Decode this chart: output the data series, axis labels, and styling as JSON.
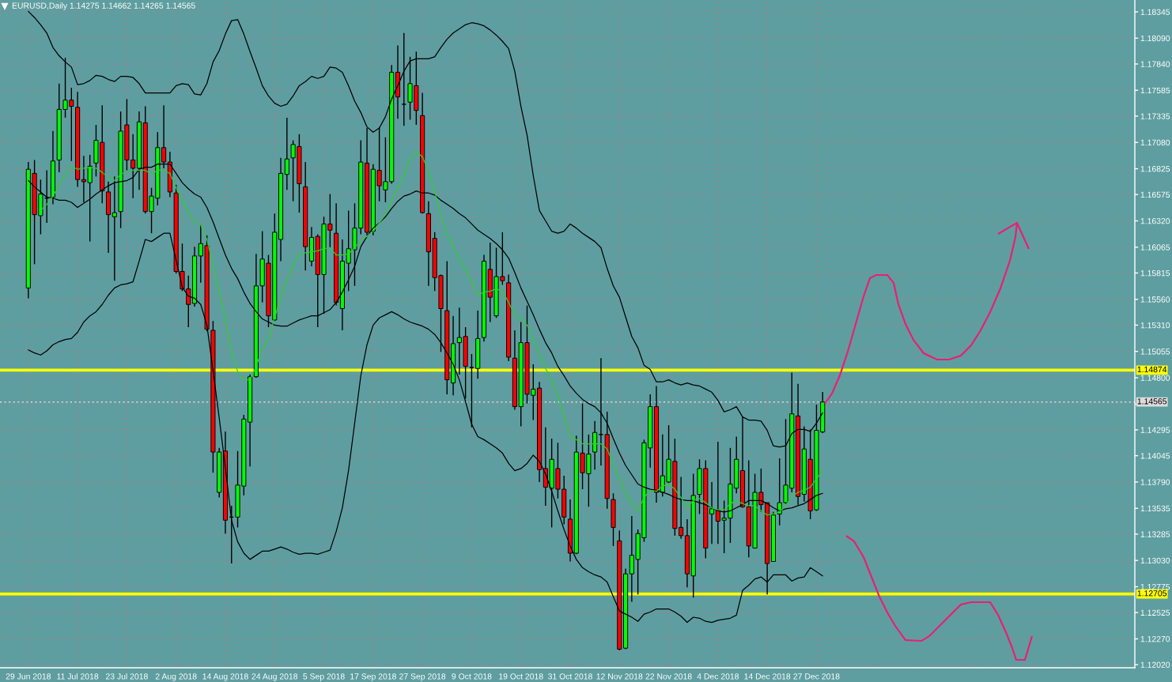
{
  "chart_data": {
    "type": "candlestick",
    "title": "EURUSD,Daily 1.14275 1.14662 1.14265 1.14565",
    "categories": [
      "29 Jun 2018",
      null,
      null,
      null,
      null,
      null,
      null,
      null,
      "11 Jul 2018",
      null,
      null,
      null,
      null,
      null,
      null,
      null,
      "23 Jul 2018",
      null,
      null,
      null,
      null,
      null,
      null,
      null,
      "2 Aug 2018",
      null,
      null,
      null,
      null,
      null,
      null,
      null,
      "14 Aug 2018",
      null,
      null,
      null,
      null,
      null,
      null,
      null,
      "24 Aug 2018",
      null,
      null,
      null,
      null,
      null,
      null,
      null,
      "5 Sep 2018",
      null,
      null,
      null,
      null,
      null,
      null,
      null,
      "17 Sep 2018",
      null,
      null,
      null,
      null,
      null,
      null,
      null,
      "27 Sep 2018",
      null,
      null,
      null,
      null,
      null,
      null,
      null,
      "9 Oct 2018",
      null,
      null,
      null,
      null,
      null,
      null,
      null,
      "19 Oct 2018",
      null,
      null,
      null,
      null,
      null,
      null,
      null,
      "31 Oct 2018",
      null,
      null,
      null,
      null,
      null,
      null,
      null,
      "12 Nov 2018",
      null,
      null,
      null,
      null,
      null,
      null,
      null,
      "22 Nov 2018",
      null,
      null,
      null,
      null,
      null,
      null,
      null,
      "4 Dec 2018",
      null,
      null,
      null,
      null,
      null,
      null,
      null,
      "14 Dec 2018",
      null,
      null,
      null,
      null,
      null,
      null,
      null,
      "27 Dec 2018",
      null
    ],
    "ohlc": [
      [
        1.1567,
        1.1689,
        1.1557,
        1.1682
      ],
      [
        1.1678,
        1.1691,
        1.159,
        1.1638
      ],
      [
        1.1637,
        1.1672,
        1.1619,
        1.1658
      ],
      [
        1.1654,
        1.1681,
        1.163,
        1.1654
      ],
      [
        1.1655,
        1.1719,
        1.1648,
        1.169
      ],
      [
        1.1691,
        1.1765,
        1.1679,
        1.174
      ],
      [
        1.174,
        1.179,
        1.1732,
        1.1749
      ],
      [
        1.1749,
        1.1761,
        1.169,
        1.1743
      ],
      [
        1.1742,
        1.1757,
        1.1665,
        1.1672
      ],
      [
        1.1672,
        1.1695,
        1.165,
        1.167
      ],
      [
        1.1669,
        1.1696,
        1.1612,
        1.1685
      ],
      [
        1.1688,
        1.1725,
        1.1675,
        1.171
      ],
      [
        1.1708,
        1.1744,
        1.1649,
        1.1661
      ],
      [
        1.166,
        1.167,
        1.1601,
        1.1638
      ],
      [
        1.1636,
        1.1675,
        1.1574,
        1.164
      ],
      [
        1.1641,
        1.1738,
        1.1625,
        1.1719
      ],
      [
        1.1725,
        1.175,
        1.1681,
        1.1691
      ],
      [
        1.1691,
        1.1716,
        1.1654,
        1.1683
      ],
      [
        1.1683,
        1.1738,
        1.1662,
        1.1728
      ],
      [
        1.1727,
        1.1743,
        1.1639,
        1.1641
      ],
      [
        1.1641,
        1.1664,
        1.162,
        1.1656
      ],
      [
        1.1654,
        1.1718,
        1.1647,
        1.1703
      ],
      [
        1.1703,
        1.1744,
        1.1683,
        1.1689
      ],
      [
        1.1689,
        1.1699,
        1.1655,
        1.166
      ],
      [
        1.1659,
        1.1667,
        1.1581,
        1.1583
      ],
      [
        1.1583,
        1.161,
        1.1564,
        1.1566
      ],
      [
        1.1566,
        1.1579,
        1.1529,
        1.1551
      ],
      [
        1.1552,
        1.1607,
        1.1549,
        1.1598
      ],
      [
        1.1598,
        1.1628,
        1.1572,
        1.161
      ],
      [
        1.1608,
        1.1618,
        1.1525,
        1.1527
      ],
      [
        1.1526,
        1.1535,
        1.1388,
        1.1408
      ],
      [
        1.1369,
        1.1412,
        1.1364,
        1.1408
      ],
      [
        1.1409,
        1.1428,
        1.1329,
        1.1342
      ],
      [
        1.1345,
        1.1356,
        1.13,
        1.1345
      ],
      [
        1.1345,
        1.1409,
        1.1335,
        1.1376
      ],
      [
        1.1375,
        1.1444,
        1.1366,
        1.144
      ],
      [
        1.1437,
        1.1483,
        1.1394,
        1.1481
      ],
      [
        1.1481,
        1.16,
        1.148,
        1.1569
      ],
      [
        1.1569,
        1.1622,
        1.1553,
        1.1595
      ],
      [
        1.1591,
        1.1599,
        1.1529,
        1.154
      ],
      [
        1.1536,
        1.1639,
        1.1535,
        1.1621
      ],
      [
        1.1614,
        1.1693,
        1.1593,
        1.1678
      ],
      [
        1.1677,
        1.1732,
        1.1662,
        1.1692
      ],
      [
        1.1693,
        1.171,
        1.1651,
        1.1706
      ],
      [
        1.1704,
        1.1716,
        1.164,
        1.1668
      ],
      [
        1.1665,
        1.1689,
        1.1584,
        1.1607
      ],
      [
        1.1593,
        1.1626,
        1.1588,
        1.1616
      ],
      [
        1.1617,
        1.1619,
        1.1529,
        1.158
      ],
      [
        1.158,
        1.1636,
        1.1542,
        1.1629
      ],
      [
        1.1629,
        1.1658,
        1.1606,
        1.1623
      ],
      [
        1.162,
        1.1649,
        1.155,
        1.1553
      ],
      [
        1.1547,
        1.1614,
        1.1526,
        1.1593
      ],
      [
        1.1591,
        1.1642,
        1.1564,
        1.1605
      ],
      [
        1.1604,
        1.1649,
        1.1569,
        1.1625
      ],
      [
        1.1625,
        1.171,
        1.1619,
        1.1689
      ],
      [
        1.1688,
        1.1722,
        1.1618,
        1.1621
      ],
      [
        1.1622,
        1.1687,
        1.1618,
        1.1682
      ],
      [
        1.1681,
        1.1723,
        1.1651,
        1.1666
      ],
      [
        1.1662,
        1.1713,
        1.165,
        1.167
      ],
      [
        1.167,
        1.1783,
        1.1668,
        1.1776
      ],
      [
        1.1776,
        1.1802,
        1.1731,
        1.1752
      ],
      [
        1.1745,
        1.1814,
        1.1724,
        1.1745
      ],
      [
        1.1747,
        1.1791,
        1.173,
        1.1765
      ],
      [
        1.1763,
        1.1796,
        1.1725,
        1.1739
      ],
      [
        1.1734,
        1.1756,
        1.1639,
        1.164
      ],
      [
        1.1639,
        1.1651,
        1.1569,
        1.1602
      ],
      [
        1.1615,
        1.1621,
        1.1564,
        1.1577
      ],
      [
        1.1579,
        1.158,
        1.1505,
        1.1547
      ],
      [
        1.1545,
        1.1593,
        1.1464,
        1.1478
      ],
      [
        1.1475,
        1.154,
        1.1463,
        1.1513
      ],
      [
        1.1514,
        1.1548,
        1.1483,
        1.1519
      ],
      [
        1.152,
        1.1529,
        1.146,
        1.1491
      ],
      [
        1.149,
        1.1503,
        1.1432,
        1.149
      ],
      [
        1.1489,
        1.1545,
        1.1479,
        1.1518
      ],
      [
        1.1519,
        1.1599,
        1.1515,
        1.1593
      ],
      [
        1.1585,
        1.1611,
        1.1534,
        1.1558
      ],
      [
        1.154,
        1.1606,
        1.1538,
        1.1578
      ],
      [
        1.1578,
        1.1621,
        1.157,
        1.1574
      ],
      [
        1.1572,
        1.158,
        1.1496,
        1.15
      ],
      [
        1.1499,
        1.1526,
        1.1449,
        1.1452
      ],
      [
        1.1452,
        1.1534,
        1.1433,
        1.1514
      ],
      [
        1.1514,
        1.155,
        1.1455,
        1.1464
      ],
      [
        1.1463,
        1.1493,
        1.1439,
        1.1469
      ],
      [
        1.147,
        1.1476,
        1.1379,
        1.1391
      ],
      [
        1.1392,
        1.1432,
        1.1356,
        1.1374
      ],
      [
        1.1373,
        1.1421,
        1.1335,
        1.1401
      ],
      [
        1.1392,
        1.1417,
        1.1363,
        1.1372
      ],
      [
        1.1372,
        1.1385,
        1.1338,
        1.1345
      ],
      [
        1.1343,
        1.1362,
        1.1302,
        1.131
      ],
      [
        1.131,
        1.1424,
        1.1309,
        1.1408
      ],
      [
        1.1407,
        1.1455,
        1.1372,
        1.1388
      ],
      [
        1.1387,
        1.1425,
        1.1355,
        1.1406
      ],
      [
        1.1408,
        1.1438,
        1.1391,
        1.1427
      ],
      [
        1.1425,
        1.1499,
        1.1395,
        1.1425
      ],
      [
        1.1425,
        1.1447,
        1.1353,
        1.1363
      ],
      [
        1.1362,
        1.1368,
        1.1317,
        1.1335
      ],
      [
        1.1322,
        1.1332,
        1.1216,
        1.1217
      ],
      [
        1.1218,
        1.1295,
        1.1217,
        1.129
      ],
      [
        1.129,
        1.1346,
        1.1263,
        1.1308
      ],
      [
        1.1304,
        1.1333,
        1.127,
        1.1329
      ],
      [
        1.1325,
        1.142,
        1.1321,
        1.1417
      ],
      [
        1.1412,
        1.1464,
        1.1393,
        1.1452
      ],
      [
        1.1452,
        1.1472,
        1.1359,
        1.1369
      ],
      [
        1.1369,
        1.1425,
        1.1365,
        1.1385
      ],
      [
        1.1379,
        1.1434,
        1.1378,
        1.1401
      ],
      [
        1.1399,
        1.1421,
        1.1327,
        1.1334
      ],
      [
        1.1335,
        1.1384,
        1.1324,
        1.1327
      ],
      [
        1.1327,
        1.1343,
        1.1277,
        1.129
      ],
      [
        1.1288,
        1.1387,
        1.1267,
        1.1366
      ],
      [
        1.1367,
        1.1401,
        1.1348,
        1.1392
      ],
      [
        1.1392,
        1.14,
        1.1305,
        1.1315
      ],
      [
        1.1348,
        1.1379,
        1.1319,
        1.1353
      ],
      [
        1.1352,
        1.1418,
        1.1319,
        1.1341
      ],
      [
        1.1342,
        1.1361,
        1.131,
        1.1344
      ],
      [
        1.1344,
        1.1412,
        1.132,
        1.1377
      ],
      [
        1.1373,
        1.1423,
        1.1368,
        1.1401
      ],
      [
        1.139,
        1.1442,
        1.1354,
        1.1355
      ],
      [
        1.1355,
        1.14,
        1.1306,
        1.1317
      ],
      [
        1.1315,
        1.1387,
        1.1315,
        1.1369
      ],
      [
        1.1369,
        1.1392,
        1.135,
        1.1357
      ],
      [
        1.1359,
        1.1359,
        1.127,
        1.13
      ],
      [
        1.1302,
        1.135,
        1.1302,
        1.1347
      ],
      [
        1.1348,
        1.1402,
        1.1337,
        1.1359
      ],
      [
        1.1359,
        1.144,
        1.1358,
        1.1376
      ],
      [
        1.1373,
        1.1485,
        1.1369,
        1.1445
      ],
      [
        1.1443,
        1.1474,
        1.1357,
        1.1365
      ],
      [
        1.1367,
        1.1433,
        1.136,
        1.1411
      ],
      [
        1.1401,
        1.143,
        1.1343,
        1.1351
      ],
      [
        1.1352,
        1.1454,
        1.1351,
        1.1429
      ],
      [
        1.14275,
        1.14662,
        1.14265,
        1.14565
      ]
    ],
    "colors": [
      "#00ff00",
      "#ff0000",
      "#00ff00",
      "#000000",
      "#00ff00",
      "#00ff00",
      "#00ff00",
      "#ff0000",
      "#ff0000",
      "#ff0000",
      "#00ff00",
      "#00ff00",
      "#ff0000",
      "#ff0000",
      "#00ff00",
      "#00ff00",
      "#ff0000",
      "#ff0000",
      "#00ff00",
      "#ff0000",
      "#00ff00",
      "#00ff00",
      "#ff0000",
      "#ff0000",
      "#ff0000",
      "#ff0000",
      "#ff0000",
      "#00ff00",
      "#00ff00",
      "#ff0000",
      "#ff0000",
      "#00ff00",
      "#ff0000",
      "#000000",
      "#00ff00",
      "#00ff00",
      "#00ff00",
      "#00ff00",
      "#00ff00",
      "#ff0000",
      "#00ff00",
      "#00ff00",
      "#00ff00",
      "#00ff00",
      "#ff0000",
      "#ff0000",
      "#00ff00",
      "#ff0000",
      "#00ff00",
      "#ff0000",
      "#ff0000",
      "#00ff00",
      "#00ff00",
      "#00ff00",
      "#00ff00",
      "#ff0000",
      "#00ff00",
      "#ff0000",
      "#00ff00",
      "#00ff00",
      "#ff0000",
      "#000000",
      "#00ff00",
      "#ff0000",
      "#ff0000",
      "#ff0000",
      "#ff0000",
      "#ff0000",
      "#ff0000",
      "#00ff00",
      "#00ff00",
      "#ff0000",
      "#000000",
      "#00ff00",
      "#00ff00",
      "#ff0000",
      "#00ff00",
      "#ff0000",
      "#ff0000",
      "#ff0000",
      "#00ff00",
      "#ff0000",
      "#00ff00",
      "#ff0000",
      "#ff0000",
      "#00ff00",
      "#ff0000",
      "#ff0000",
      "#ff0000",
      "#00ff00",
      "#ff0000",
      "#00ff00",
      "#00ff00",
      "#000000",
      "#ff0000",
      "#ff0000",
      "#ff0000",
      "#00ff00",
      "#00ff00",
      "#00ff00",
      "#00ff00",
      "#00ff00",
      "#ff0000",
      "#00ff00",
      "#00ff00",
      "#ff0000",
      "#ff0000",
      "#ff0000",
      "#00ff00",
      "#00ff00",
      "#ff0000",
      "#00ff00",
      "#ff0000",
      "#00ff00",
      "#00ff00",
      "#00ff00",
      "#ff0000",
      "#ff0000",
      "#00ff00",
      "#ff0000",
      "#ff0000",
      "#00ff00",
      "#00ff00",
      "#00ff00",
      "#00ff00",
      "#ff0000",
      "#00ff00",
      "#ff0000",
      "#00ff00",
      "#00ff00"
    ],
    "series": [
      {
        "type": "line",
        "color": "#000000",
        "values": [
          1.1835,
          1.1829,
          1.1822,
          1.1814,
          1.18,
          1.1792,
          1.1786,
          1.1781,
          1.1764,
          1.1765,
          1.1768,
          1.1773,
          1.1772,
          1.1769,
          1.1767,
          1.1772,
          1.1772,
          1.1771,
          1.1765,
          1.1756,
          1.1756,
          1.1756,
          1.1756,
          1.1756,
          1.1763,
          1.1765,
          1.1764,
          1.1755,
          1.1754,
          1.1765,
          1.1786,
          1.1797,
          1.1813,
          1.1826,
          1.1827,
          1.1813,
          1.1796,
          1.178,
          1.1763,
          1.1753,
          1.1746,
          1.1743,
          1.1745,
          1.1753,
          1.1763,
          1.1767,
          1.1772,
          1.177,
          1.1772,
          1.1781,
          1.178,
          1.1776,
          1.1763,
          1.1748,
          1.1737,
          1.1723,
          1.1718,
          1.1722,
          1.1733,
          1.175,
          1.1763,
          1.1777,
          1.1787,
          1.1789,
          1.1789,
          1.1789,
          1.1791,
          1.18,
          1.1808,
          1.1814,
          1.1818,
          1.1822,
          1.1824,
          1.1823,
          1.1821,
          1.1817,
          1.1812,
          1.1806,
          1.1799,
          1.1777,
          1.1743,
          1.1715,
          1.1676,
          1.1642,
          1.1632,
          1.1622,
          1.162,
          1.1622,
          1.1629,
          1.1625,
          1.162,
          1.1616,
          1.1612,
          1.1606,
          1.1586,
          1.1569,
          1.1558,
          1.1539,
          1.152,
          1.1509,
          1.1492,
          1.1488,
          1.1476,
          1.1476,
          1.1478,
          1.1475,
          1.1473,
          1.1475,
          1.1473,
          1.1472,
          1.1469,
          1.1466,
          1.1458,
          1.1447,
          1.1449,
          1.1452,
          1.1442,
          1.1439,
          1.1439,
          1.1438,
          1.1429,
          1.1414,
          1.1413,
          1.1414,
          1.1426,
          1.143,
          1.143,
          1.1428,
          1.1436,
          1.1446
        ]
      },
      {
        "type": "line",
        "color": "#000000",
        "values": [
          1.1671,
          1.1665,
          1.166,
          1.1655,
          1.1654,
          1.1652,
          1.1652,
          1.165,
          1.1645,
          1.1649,
          1.1653,
          1.1658,
          1.1662,
          1.1666,
          1.1669,
          1.167,
          1.1671,
          1.1674,
          1.1682,
          1.1684,
          1.1684,
          1.1687,
          1.1687,
          1.1687,
          1.1678,
          1.1669,
          1.1663,
          1.1658,
          1.1655,
          1.1645,
          1.1631,
          1.1615,
          1.1599,
          1.1586,
          1.1576,
          1.1563,
          1.1552,
          1.1544,
          1.1537,
          1.1534,
          1.1531,
          1.153,
          1.153,
          1.1533,
          1.1536,
          1.1538,
          1.154,
          1.154,
          1.1543,
          1.1546,
          1.1553,
          1.1563,
          1.1575,
          1.1588,
          1.1607,
          1.1617,
          1.1625,
          1.163,
          1.1636,
          1.1644,
          1.1651,
          1.1656,
          1.1658,
          1.1661,
          1.1659,
          1.1659,
          1.1657,
          1.1652,
          1.1648,
          1.1644,
          1.1639,
          1.1635,
          1.1629,
          1.1623,
          1.1619,
          1.1615,
          1.161,
          1.1604,
          1.1596,
          1.1582,
          1.1567,
          1.1554,
          1.1541,
          1.1527,
          1.1514,
          1.1504,
          1.1491,
          1.1482,
          1.1472,
          1.1465,
          1.1459,
          1.1455,
          1.1452,
          1.1446,
          1.1436,
          1.1421,
          1.1407,
          1.1395,
          1.1386,
          1.1377,
          1.1374,
          1.1372,
          1.1371,
          1.1369,
          1.1367,
          1.1364,
          1.1362,
          1.1361,
          1.1361,
          1.1359,
          1.1357,
          1.1354,
          1.1351,
          1.135,
          1.1351,
          1.1354,
          1.1357,
          1.1361,
          1.1361,
          1.1361,
          1.1358,
          1.1354,
          1.1351,
          1.1353,
          1.1354,
          1.1356,
          1.1358,
          1.1362,
          1.1366,
          1.1368
        ]
      },
      {
        "type": "line",
        "color": "#000000",
        "values": [
          1.1507,
          1.1504,
          1.1502,
          1.1506,
          1.1512,
          1.1515,
          1.1517,
          1.1518,
          1.1524,
          1.1534,
          1.154,
          1.1544,
          1.1551,
          1.156,
          1.1567,
          1.157,
          1.1571,
          1.1573,
          1.1593,
          1.1614,
          1.1612,
          1.1616,
          1.162,
          1.162,
          1.1594,
          1.1568,
          1.1559,
          1.1557,
          1.1551,
          1.1531,
          1.1487,
          1.1441,
          1.1393,
          1.1342,
          1.1321,
          1.131,
          1.1304,
          1.1308,
          1.1312,
          1.1312,
          1.1314,
          1.1316,
          1.1314,
          1.1311,
          1.1309,
          1.131,
          1.131,
          1.1309,
          1.1311,
          1.1313,
          1.1331,
          1.1354,
          1.139,
          1.1436,
          1.1482,
          1.1512,
          1.1531,
          1.1538,
          1.1541,
          1.1544,
          1.1541,
          1.1537,
          1.1534,
          1.1532,
          1.153,
          1.1527,
          1.1522,
          1.1514,
          1.1504,
          1.1493,
          1.1478,
          1.1457,
          1.1435,
          1.1423,
          1.142,
          1.1416,
          1.1412,
          1.1407,
          1.1397,
          1.139,
          1.1392,
          1.1397,
          1.1405,
          1.1399,
          1.1387,
          1.137,
          1.1351,
          1.1333,
          1.1317,
          1.1304,
          1.1296,
          1.1292,
          1.1289,
          1.1287,
          1.1282,
          1.1268,
          1.1254,
          1.1251,
          1.1248,
          1.1244,
          1.1251,
          1.1253,
          1.1256,
          1.1256,
          1.1256,
          1.1253,
          1.1249,
          1.1243,
          1.1248,
          1.1247,
          1.1244,
          1.1243,
          1.1245,
          1.1246,
          1.1247,
          1.125,
          1.1274,
          1.1279,
          1.1285,
          1.1287,
          1.1282,
          1.1289,
          1.1289,
          1.1289,
          1.1283,
          1.1286,
          1.1287,
          1.1296,
          1.1292,
          1.1288
        ]
      },
      {
        "type": "line",
        "color": "#32cd32",
        "values": [
          null,
          null,
          1.1642,
          1.1648,
          1.1656,
          1.1667,
          1.1676,
          1.1685,
          1.1682,
          1.1683,
          1.1684,
          1.1683,
          1.1679,
          1.1674,
          1.1671,
          1.1677,
          1.168,
          1.1681,
          1.1681,
          1.1681,
          1.1677,
          1.1681,
          1.1681,
          1.1678,
          1.1664,
          1.1652,
          1.164,
          1.1631,
          1.1628,
          1.1614,
          1.159,
          1.1564,
          1.1537,
          1.1505,
          1.1486,
          1.1478,
          1.1478,
          1.1491,
          1.1508,
          1.1518,
          1.1538,
          1.1558,
          1.1575,
          1.1589,
          1.16,
          1.1601,
          1.1602,
          1.1603,
          1.1605,
          1.1606,
          1.1599,
          1.1599,
          1.16,
          1.1606,
          1.1613,
          1.1617,
          1.1622,
          1.163,
          1.1638,
          1.1652,
          1.1664,
          1.1675,
          1.1693,
          1.1699,
          1.1694,
          1.168,
          1.166,
          1.1638,
          1.1619,
          1.1608,
          1.1596,
          1.1585,
          1.1573,
          1.156,
          1.1563,
          1.1564,
          1.1566,
          1.1564,
          1.1553,
          1.1541,
          1.1537,
          1.1531,
          1.1518,
          1.1503,
          1.1489,
          1.1478,
          1.1462,
          1.1443,
          1.1423,
          1.142,
          1.1416,
          1.1416,
          1.1416,
          1.1416,
          1.1411,
          1.1396,
          1.1382,
          1.1368,
          1.1359,
          1.1351,
          1.1364,
          1.1371,
          1.137,
          1.1375,
          1.1377,
          1.1372,
          1.1364,
          1.1354,
          1.1361,
          1.1363,
          1.1359,
          1.1354,
          1.1352,
          1.1352,
          1.1358,
          1.1361,
          1.1358,
          1.1356,
          1.1356,
          1.1351,
          1.1347,
          1.1348,
          1.135,
          1.1356,
          1.1365,
          1.1369,
          1.1371,
          1.1374,
          1.1382,
          1.139
        ]
      }
    ],
    "ylim": [
      1.1199,
      1.1846
    ],
    "yticks": [
      1.18345,
      {
        "value": 1.1809,
        "label": "1.18090"
      },
      {
        "value": 1.1784,
        "label": "1.17840"
      },
      1.17585,
      1.17335,
      {
        "value": 1.1708,
        "label": "1.17080"
      },
      1.16825,
      1.16575,
      {
        "value": 1.1632,
        "label": "1.16320"
      },
      1.16065,
      1.15815,
      {
        "value": 1.1556,
        "label": "1.15560"
      },
      {
        "value": 1.1531,
        "label": "1.15310"
      },
      1.15055,
      {
        "value": 1.148,
        "label": "1.14800"
      },
      {
        "value": 1.14545,
        "label": null
      },
      1.14295,
      1.14045,
      {
        "value": 1.1379,
        "label": "1.13790"
      },
      1.13535,
      1.13285,
      {
        "value": 1.1303,
        "label": "1.13030"
      },
      1.12775,
      1.12525,
      {
        "value": 1.1227,
        "label": "1.12270"
      },
      {
        "value": 1.1202,
        "label": "1.12020"
      }
    ],
    "ref_lines": [
      {
        "axis": "y",
        "value": 1.14874,
        "label": "1.14874",
        "color": "#ffff00",
        "line_style": "solid"
      },
      {
        "axis": "y",
        "value": 1.12705,
        "label": "1.12705",
        "color": "#ffff00",
        "line_style": "solid"
      },
      {
        "axis": "y",
        "value": 1.14565,
        "label": "1.14565",
        "color": "#dcdcdc",
        "line_style": "dotted"
      }
    ],
    "grid": true
  }
}
